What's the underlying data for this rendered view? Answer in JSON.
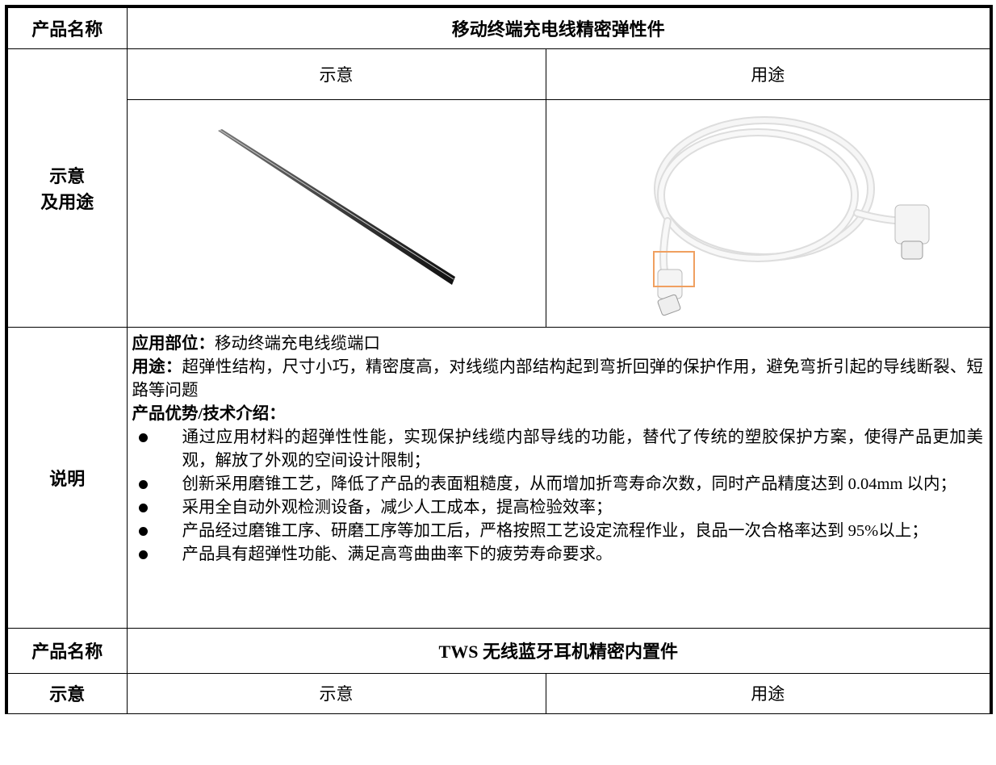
{
  "product_1": {
    "label": "产品名称",
    "name": "移动终端充电线精密弹性件"
  },
  "illustration": {
    "label_lines": [
      "示意",
      "及用途"
    ],
    "headers": [
      "示意",
      "用途"
    ]
  },
  "description": {
    "label": "说明",
    "application": {
      "label": "应用部位：",
      "text": "移动终端充电线缆端口"
    },
    "use": {
      "label": "用途：",
      "text": "超弹性结构，尺寸小巧，精密度高，对线缆内部结构起到弯折回弹的保护作用，避免弯折引起的导线断裂、短路等问题"
    },
    "advantages_title": "产品优势/技术介绍：",
    "bullets": [
      "通过应用材料的超弹性性能，实现保护线缆内部导线的功能，替代了传统的塑胶保护方案，使得产品更加美观，解放了外观的空间设计限制；",
      "创新采用磨锥工艺，降低了产品的表面粗糙度，从而增加折弯寿命次数，同时产品精度达到 0.04mm 以内；",
      "采用全自动外观检测设备，减少人工成本，提高检验效率；",
      "产品经过磨锥工序、研磨工序等加工后，严格按照工艺设定流程作业，良品一次合格率达到 95%以上；",
      "产品具有超弹性功能、满足高弯曲曲率下的疲劳寿命要求。"
    ]
  },
  "product_2": {
    "label": "产品名称",
    "name": "TWS 无线蓝牙耳机精密内置件"
  },
  "illustration_2": {
    "label": "示意",
    "headers": [
      "示意",
      "用途"
    ]
  }
}
